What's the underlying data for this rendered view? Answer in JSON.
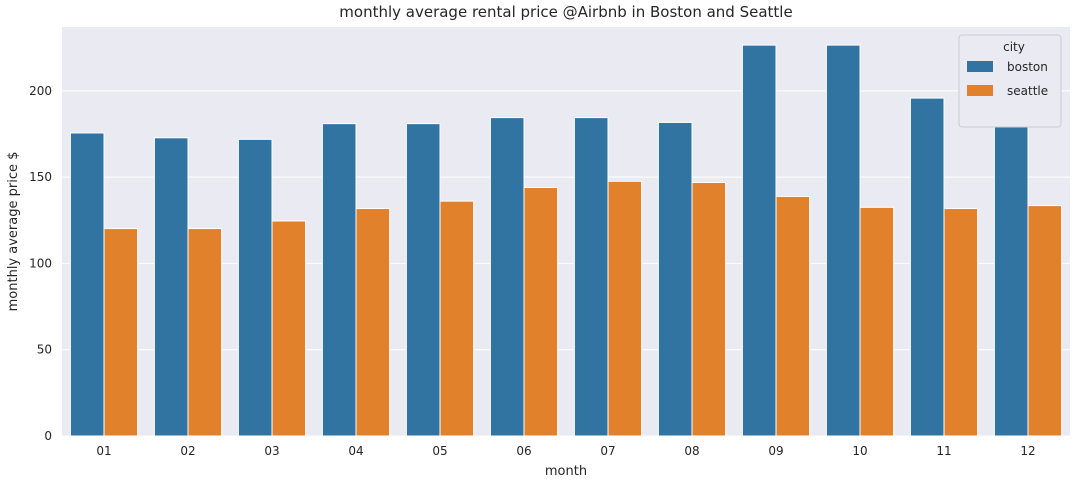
{
  "chart_data": {
    "type": "bar",
    "title": "monthly average rental price @Airbnb in Boston and Seattle",
    "xlabel": "month",
    "ylabel": "monthly average price $",
    "categories": [
      "01",
      "02",
      "03",
      "04",
      "05",
      "06",
      "07",
      "08",
      "09",
      "10",
      "11",
      "12"
    ],
    "series": [
      {
        "name": "boston",
        "color": "#3274a1",
        "values": [
          175.6,
          172.8,
          171.9,
          181.0,
          181.0,
          184.5,
          184.5,
          181.7,
          226.5,
          226.5,
          195.8,
          184.5
        ]
      },
      {
        "name": "seattle",
        "color": "#e1812c",
        "values": [
          120.2,
          120.2,
          124.6,
          131.8,
          136.1,
          144.0,
          147.6,
          146.9,
          138.8,
          132.5,
          131.8,
          133.5
        ]
      }
    ],
    "ylim": [
      0,
      237
    ],
    "yticks": [
      0,
      50,
      100,
      150,
      200
    ],
    "grid": true,
    "legend": {
      "title": "city",
      "placement": "top-right"
    },
    "background_color": "#eaeaf2",
    "grid_color": "#ffffff"
  }
}
